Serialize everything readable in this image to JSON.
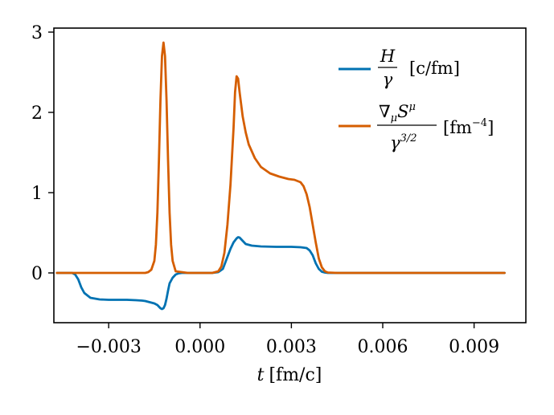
{
  "chart_data": {
    "type": "line",
    "xlabel": "t [fm/c]",
    "ylabel": "",
    "xlim": [
      -0.0048,
      0.0107
    ],
    "ylim": [
      -0.62,
      3.05
    ],
    "xticks": [
      -0.003,
      0.0,
      0.003,
      0.006,
      0.009
    ],
    "xtick_labels": [
      "−0.003",
      "0.000",
      "0.003",
      "0.006",
      "0.009"
    ],
    "yticks": [
      0,
      1,
      2,
      3
    ],
    "ytick_labels": [
      "0",
      "1",
      "2",
      "3"
    ],
    "grid": false,
    "legend_position": "top-right",
    "series": [
      {
        "name": "H/γ [c/fm]",
        "color": "#0072b2",
        "x": [
          -0.0047,
          -0.0042,
          -0.0041,
          -0.004,
          -0.0039,
          -0.0038,
          -0.0036,
          -0.0033,
          -0.003,
          -0.0027,
          -0.0024,
          -0.0021,
          -0.0019,
          -0.0018,
          -0.0017,
          -0.0016,
          -0.0015,
          -0.0014,
          -0.00135,
          -0.0013,
          -0.00125,
          -0.0012,
          -0.00115,
          -0.0011,
          -0.00105,
          -0.001,
          -0.0009,
          -0.0008,
          -0.0007,
          -0.0006,
          -0.0004,
          0.0,
          0.0004,
          0.0006,
          0.00075,
          0.0008,
          0.0009,
          0.001,
          0.0011,
          0.0012,
          0.00125,
          0.0013,
          0.0014,
          0.0015,
          0.0017,
          0.002,
          0.0025,
          0.003,
          0.0033,
          0.0035,
          0.0036,
          0.0037,
          0.0038,
          0.0039,
          0.004,
          0.0041,
          0.0042,
          0.0045,
          0.006,
          0.008,
          0.01
        ],
        "y": [
          0,
          0,
          -0.02,
          -0.08,
          -0.18,
          -0.25,
          -0.31,
          -0.33,
          -0.335,
          -0.335,
          -0.335,
          -0.34,
          -0.345,
          -0.35,
          -0.36,
          -0.37,
          -0.38,
          -0.4,
          -0.42,
          -0.44,
          -0.45,
          -0.44,
          -0.4,
          -0.32,
          -0.22,
          -0.13,
          -0.06,
          -0.02,
          -0.005,
          0,
          0,
          0,
          0,
          0.01,
          0.05,
          0.1,
          0.2,
          0.3,
          0.38,
          0.43,
          0.445,
          0.44,
          0.4,
          0.36,
          0.34,
          0.33,
          0.325,
          0.325,
          0.32,
          0.31,
          0.28,
          0.22,
          0.12,
          0.05,
          0.015,
          0.005,
          0,
          0,
          0,
          0,
          0
        ]
      },
      {
        "name": "∇μSμ/γ^(3/2) [fm⁻⁴]",
        "color": "#d55e00",
        "x": [
          -0.0047,
          -0.0018,
          -0.0017,
          -0.0016,
          -0.0015,
          -0.00145,
          -0.0014,
          -0.00135,
          -0.0013,
          -0.00125,
          -0.0012,
          -0.00115,
          -0.0011,
          -0.00105,
          -0.001,
          -0.00095,
          -0.0009,
          -0.0008,
          -0.0004,
          0.0,
          0.0004,
          0.0006,
          0.0007,
          0.0008,
          0.0009,
          0.001,
          0.0011,
          0.00115,
          0.0012,
          0.00125,
          0.0013,
          0.0014,
          0.0015,
          0.0016,
          0.0018,
          0.002,
          0.0023,
          0.0026,
          0.0029,
          0.0031,
          0.0033,
          0.0034,
          0.0035,
          0.0036,
          0.0037,
          0.0038,
          0.0039,
          0.004,
          0.0041,
          0.0042,
          0.0045,
          0.006,
          0.008,
          0.01
        ],
        "y": [
          0,
          0,
          0.01,
          0.04,
          0.15,
          0.35,
          0.75,
          1.4,
          2.15,
          2.7,
          2.87,
          2.7,
          2.15,
          1.4,
          0.75,
          0.35,
          0.15,
          0.02,
          0,
          0,
          0,
          0.02,
          0.08,
          0.25,
          0.6,
          1.1,
          1.8,
          2.25,
          2.45,
          2.42,
          2.25,
          1.95,
          1.75,
          1.6,
          1.43,
          1.32,
          1.24,
          1.2,
          1.17,
          1.16,
          1.13,
          1.08,
          0.98,
          0.82,
          0.6,
          0.38,
          0.18,
          0.07,
          0.02,
          0.005,
          0,
          0,
          0,
          0
        ]
      }
    ]
  },
  "legend": {
    "entry1": {
      "num": "H",
      "den": "γ",
      "unit": "[c/fm]"
    },
    "entry2": {
      "num_main": "∇",
      "num_sub": "μ",
      "num_s": "S",
      "num_sup": "μ",
      "den_main": "γ",
      "den_sup": "3/2",
      "unit_main": "[fm",
      "unit_sup": "−4",
      "unit_close": "]"
    }
  },
  "xlabel_parts": {
    "var": "t",
    "unit": "[fm/c]"
  }
}
